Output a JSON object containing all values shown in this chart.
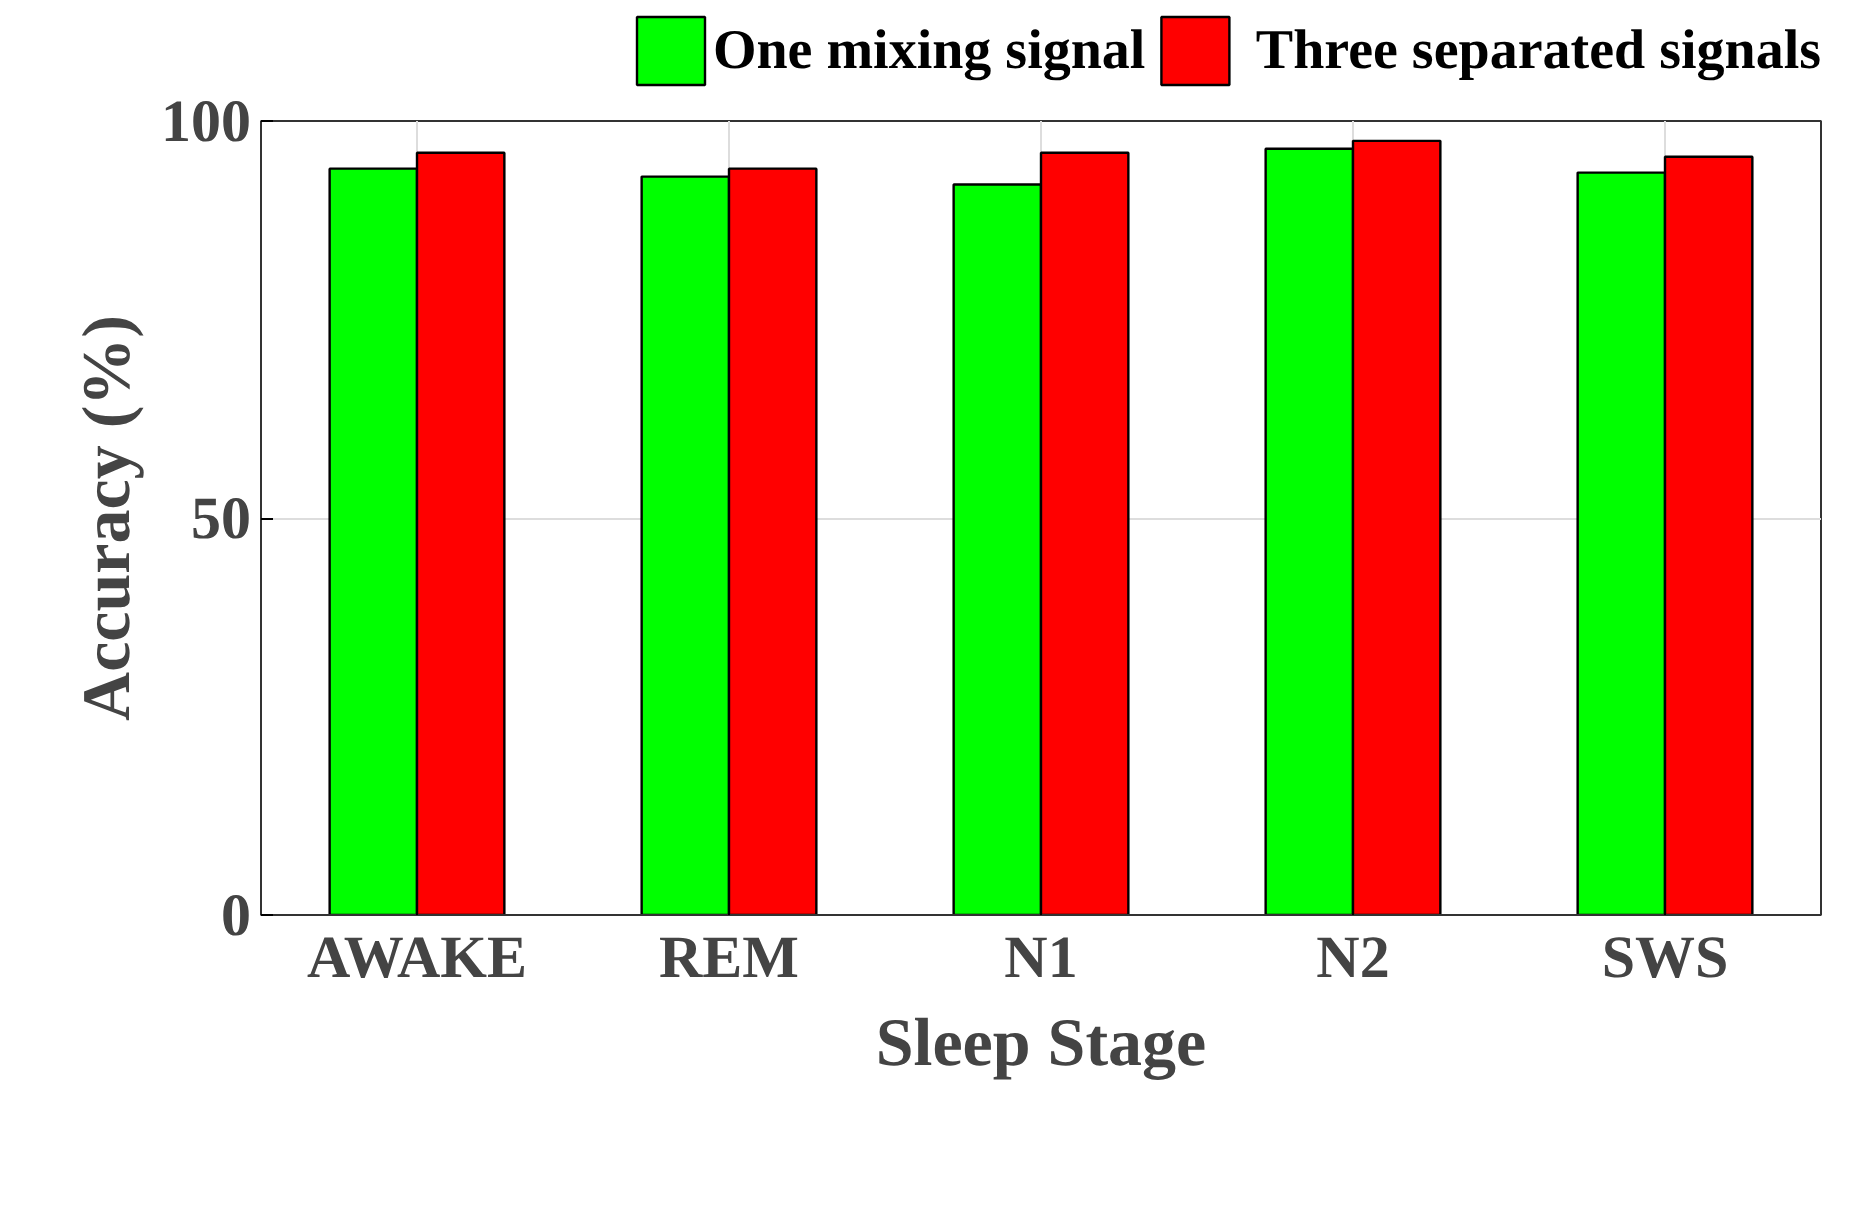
{
  "chart_data": {
    "type": "bar",
    "xlabel": "Sleep Stage",
    "ylabel": "Accuracy (%)",
    "categories": [
      "AWAKE",
      "REM",
      "N1",
      "N2",
      "SWS"
    ],
    "series": [
      {
        "name": "One mixing signal",
        "color": "#00ff00",
        "values": [
          94,
          93,
          92,
          96.5,
          93.5
        ]
      },
      {
        "name": "Three separated signals",
        "color": "#ff0000",
        "values": [
          96,
          94,
          96,
          97.5,
          95.5
        ]
      }
    ],
    "ylim": [
      0,
      100
    ],
    "yticks": [
      0,
      50,
      100
    ],
    "grid": true,
    "legend": "top"
  }
}
